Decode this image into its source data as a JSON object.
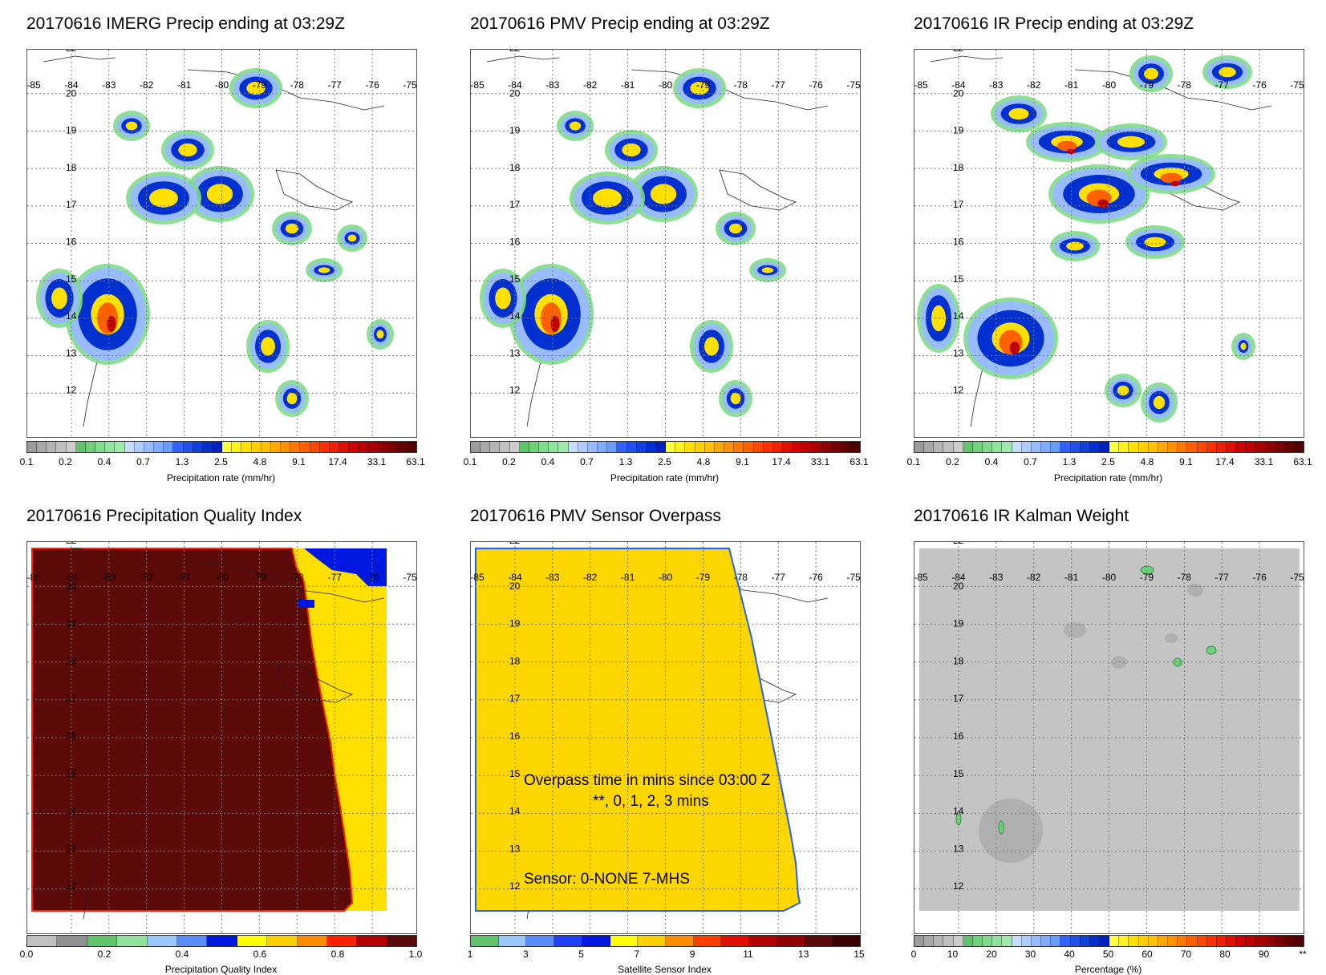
{
  "date": "20170616",
  "domain": {
    "lon_min": -85,
    "lon_max": -75,
    "lat_min": 12,
    "lat_max": 22
  },
  "lon_ticks": [
    "-85",
    "-84",
    "-83",
    "-82",
    "-81",
    "-80",
    "-79",
    "-78",
    "-77",
    "-76",
    "-75"
  ],
  "lat_ticks": [
    "22",
    "20",
    "19",
    "18",
    "17",
    "16",
    "15",
    "14",
    "13",
    "12"
  ],
  "precip_colorbar": {
    "labels": [
      "0.1",
      "0.2",
      "0.4",
      "0.7",
      "1.3",
      "2.5",
      "4.8",
      "9.1",
      "17.4",
      "33.1",
      "63.1"
    ],
    "title": "Precipitation rate (mm/hr)",
    "colors": [
      "#9c9c9c",
      "#a8a8a8",
      "#b4b4b4",
      "#c0c0c0",
      "#cccccc",
      "#5fc46a",
      "#6fd07a",
      "#7fdc8a",
      "#8fe39a",
      "#9fe9aa",
      "#c8dcff",
      "#b0ccff",
      "#98bcff",
      "#80acff",
      "#689cff",
      "#3060ff",
      "#2050f0",
      "#1040e0",
      "#0030d0",
      "#0020c0",
      "#ffff40",
      "#fff020",
      "#ffe000",
      "#ffd000",
      "#ffc000",
      "#ffa800",
      "#ff9000",
      "#ff7800",
      "#ff6000",
      "#ff4800",
      "#ff3000",
      "#f02000",
      "#e01000",
      "#d00000",
      "#c00000",
      "#a80000",
      "#900000",
      "#780000",
      "#600000",
      "#500000"
    ]
  },
  "panels": {
    "imerg": {
      "title": "20170616 IMERG Precip ending at 03:29Z"
    },
    "pmv": {
      "title": "20170616 PMV Precip ending at 03:29Z"
    },
    "ir": {
      "title": "20170616 IR Precip ending at 03:29Z"
    },
    "quality": {
      "title": "20170616 Precipitation Quality Index",
      "colorbar_title": "Precipitation Quality Index",
      "colorbar_labels": [
        "0.0",
        "0.2",
        "0.4",
        "0.6",
        "0.8",
        "1.0"
      ],
      "colors": [
        "#c0c0c0",
        "#909090",
        "#5fc46a",
        "#8fe39a",
        "#98c8ff",
        "#5a8cff",
        "#0018e0",
        "#ffff00",
        "#ffd000",
        "#ff8c00",
        "#ff2000",
        "#b00000",
        "#5a0a0a"
      ]
    },
    "sensor": {
      "title": "20170616 PMV Sensor Overpass",
      "colorbar_title": "Satellite Sensor Index",
      "colorbar_labels": [
        "1",
        "3",
        "5",
        "7",
        "9",
        "11",
        "13",
        "15"
      ],
      "colors": [
        "#5fc46a",
        "#98c8ff",
        "#5a8cff",
        "#2040ff",
        "#0018e0",
        "#ffff00",
        "#ffd000",
        "#ff8c00",
        "#ff4000",
        "#e01000",
        "#b00000",
        "#900000",
        "#5a0a0a",
        "#3a0000"
      ],
      "overlay_line1": "Overpass time in mins since 03:00 Z",
      "overlay_line2": "**, 0, 1, 2, 3 mins",
      "overlay_line3": "Sensor:   0-NONE  7-MHS"
    },
    "kalman": {
      "title": "20170616 IR Kalman Weight",
      "colorbar_title": "Percentage (%)",
      "colorbar_labels": [
        "0",
        "10",
        "20",
        "30",
        "40",
        "50",
        "60",
        "70",
        "80",
        "90",
        "**"
      ],
      "colors": [
        "#9c9c9c",
        "#a8a8a8",
        "#b4b4b4",
        "#c0c0c0",
        "#cccccc",
        "#5fc46a",
        "#6fd07a",
        "#7fdc8a",
        "#8fe39a",
        "#9fe9aa",
        "#c8dcff",
        "#b0ccff",
        "#98bcff",
        "#80acff",
        "#689cff",
        "#3060ff",
        "#2050f0",
        "#1040e0",
        "#0030d0",
        "#0020c0",
        "#ffff40",
        "#fff020",
        "#ffe000",
        "#ffd000",
        "#ffc000",
        "#ffa800",
        "#ff9000",
        "#ff7800",
        "#ff6000",
        "#ff4800",
        "#ff3000",
        "#f02000",
        "#e01000",
        "#d00000",
        "#c00000",
        "#a80000",
        "#900000",
        "#780000",
        "#600000",
        "#500000"
      ]
    }
  },
  "colors": {
    "quality_dark": "#5c0a0a",
    "quality_yellow": "#ffe000",
    "quality_blue": "#0018e0",
    "sensor_yellow": "#ffd700",
    "kalman_gray": "#c4c4c4"
  }
}
